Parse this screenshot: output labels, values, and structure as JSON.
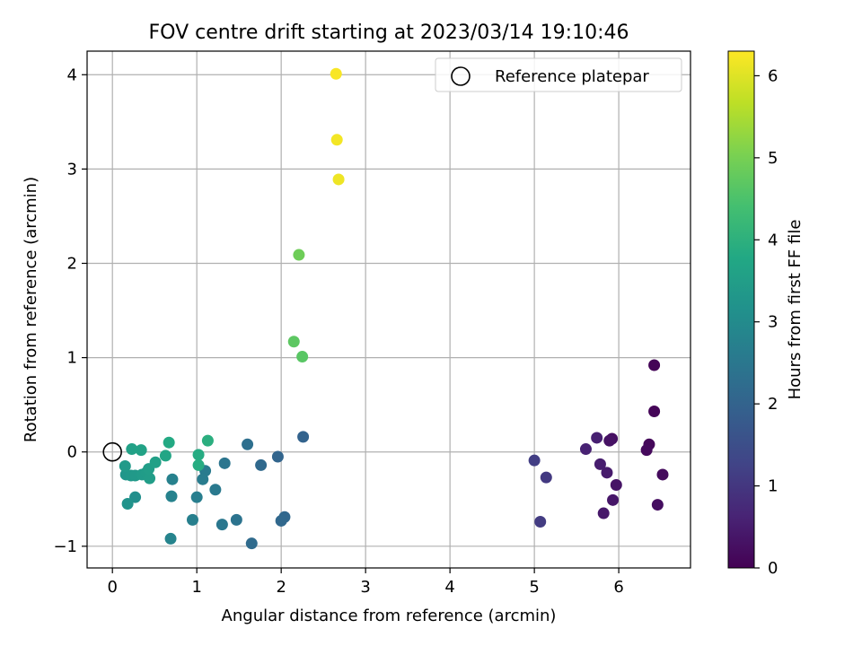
{
  "chart_data": {
    "type": "scatter",
    "title": "FOV centre drift starting at 2023/03/14 19:10:46",
    "xlabel": "Angular distance from reference (arcmin)",
    "ylabel": "Rotation from reference (arcmin)",
    "xlim": [
      -0.3,
      6.85
    ],
    "ylim": [
      -1.23,
      4.25
    ],
    "xticks": [
      0,
      1,
      2,
      3,
      4,
      5,
      6
    ],
    "xtick_labels": [
      "0",
      "1",
      "2",
      "3",
      "4",
      "5",
      "6"
    ],
    "yticks": [
      -1,
      0,
      1,
      2,
      3,
      4
    ],
    "ytick_labels": [
      "−1",
      "0",
      "1",
      "2",
      "3",
      "4"
    ],
    "grid": true,
    "legend": {
      "placement": "top-right",
      "entries": [
        "Reference platepar"
      ]
    },
    "reference_point": {
      "x": 0,
      "y": 0,
      "label": "Reference platepar"
    },
    "colorbar": {
      "label": "Hours from first FF file",
      "colormap": "viridis",
      "range": [
        0,
        6.3
      ],
      "ticks": [
        0,
        1,
        2,
        3,
        4,
        5,
        6
      ],
      "tick_labels": [
        "0",
        "1",
        "2",
        "3",
        "4",
        "5",
        "6"
      ]
    },
    "points": [
      {
        "x": 6.42,
        "y": 0.92,
        "c": 0.05
      },
      {
        "x": 6.42,
        "y": 0.43,
        "c": 0.08
      },
      {
        "x": 6.36,
        "y": 0.08,
        "c": 0.12
      },
      {
        "x": 6.33,
        "y": 0.02,
        "c": 0.15
      },
      {
        "x": 6.52,
        "y": -0.24,
        "c": 0.18
      },
      {
        "x": 6.46,
        "y": -0.56,
        "c": 0.22
      },
      {
        "x": 5.92,
        "y": 0.14,
        "c": 0.26
      },
      {
        "x": 5.89,
        "y": 0.12,
        "c": 0.3
      },
      {
        "x": 5.97,
        "y": -0.35,
        "c": 0.34
      },
      {
        "x": 5.93,
        "y": -0.51,
        "c": 0.38
      },
      {
        "x": 5.82,
        "y": -0.65,
        "c": 0.42
      },
      {
        "x": 5.86,
        "y": -0.22,
        "c": 0.46
      },
      {
        "x": 5.78,
        "y": -0.13,
        "c": 0.5
      },
      {
        "x": 5.74,
        "y": 0.15,
        "c": 0.55
      },
      {
        "x": 5.61,
        "y": 0.03,
        "c": 0.6
      },
      {
        "x": 5.14,
        "y": -0.27,
        "c": 1.05
      },
      {
        "x": 5.07,
        "y": -0.74,
        "c": 1.1
      },
      {
        "x": 5.0,
        "y": -0.09,
        "c": 1.15
      },
      {
        "x": 2.26,
        "y": 0.16,
        "c": 2.0
      },
      {
        "x": 1.96,
        "y": -0.05,
        "c": 2.05
      },
      {
        "x": 2.04,
        "y": -0.69,
        "c": 2.1
      },
      {
        "x": 2.0,
        "y": -0.73,
        "c": 2.12
      },
      {
        "x": 1.76,
        "y": -0.14,
        "c": 2.15
      },
      {
        "x": 1.65,
        "y": -0.97,
        "c": 2.2
      },
      {
        "x": 1.6,
        "y": 0.08,
        "c": 2.3
      },
      {
        "x": 1.47,
        "y": -0.72,
        "c": 2.4
      },
      {
        "x": 1.33,
        "y": -0.12,
        "c": 2.45
      },
      {
        "x": 1.3,
        "y": -0.77,
        "c": 2.5
      },
      {
        "x": 1.22,
        "y": -0.4,
        "c": 2.55
      },
      {
        "x": 1.1,
        "y": -0.2,
        "c": 2.6
      },
      {
        "x": 1.07,
        "y": -0.29,
        "c": 2.62
      },
      {
        "x": 1.0,
        "y": -0.48,
        "c": 2.66
      },
      {
        "x": 0.95,
        "y": -0.72,
        "c": 2.7
      },
      {
        "x": 0.71,
        "y": -0.29,
        "c": 2.75
      },
      {
        "x": 0.7,
        "y": -0.47,
        "c": 2.78
      },
      {
        "x": 0.69,
        "y": -0.92,
        "c": 2.82
      },
      {
        "x": 0.27,
        "y": -0.48,
        "c": 3.1
      },
      {
        "x": 0.18,
        "y": -0.55,
        "c": 3.2
      },
      {
        "x": 0.16,
        "y": -0.24,
        "c": 3.3
      },
      {
        "x": 0.22,
        "y": -0.25,
        "c": 3.35
      },
      {
        "x": 0.27,
        "y": -0.25,
        "c": 3.38
      },
      {
        "x": 0.15,
        "y": -0.15,
        "c": 3.4
      },
      {
        "x": 0.35,
        "y": -0.24,
        "c": 3.42
      },
      {
        "x": 0.4,
        "y": -0.22,
        "c": 3.45
      },
      {
        "x": 0.44,
        "y": -0.28,
        "c": 3.48
      },
      {
        "x": 0.43,
        "y": -0.18,
        "c": 3.5
      },
      {
        "x": 0.51,
        "y": -0.11,
        "c": 3.55
      },
      {
        "x": 0.23,
        "y": 0.03,
        "c": 3.58
      },
      {
        "x": 0.34,
        "y": 0.02,
        "c": 3.62
      },
      {
        "x": 0.63,
        "y": -0.04,
        "c": 3.7
      },
      {
        "x": 0.67,
        "y": 0.1,
        "c": 3.8
      },
      {
        "x": 1.02,
        "y": -0.03,
        "c": 3.85
      },
      {
        "x": 1.02,
        "y": -0.14,
        "c": 3.88
      },
      {
        "x": 1.13,
        "y": 0.12,
        "c": 3.95
      },
      {
        "x": 2.25,
        "y": 1.01,
        "c": 4.65
      },
      {
        "x": 2.15,
        "y": 1.17,
        "c": 4.7
      },
      {
        "x": 2.21,
        "y": 2.09,
        "c": 4.9
      },
      {
        "x": 2.68,
        "y": 2.89,
        "c": 6.15
      },
      {
        "x": 2.66,
        "y": 3.31,
        "c": 6.2
      },
      {
        "x": 2.65,
        "y": 4.01,
        "c": 6.25
      }
    ]
  }
}
